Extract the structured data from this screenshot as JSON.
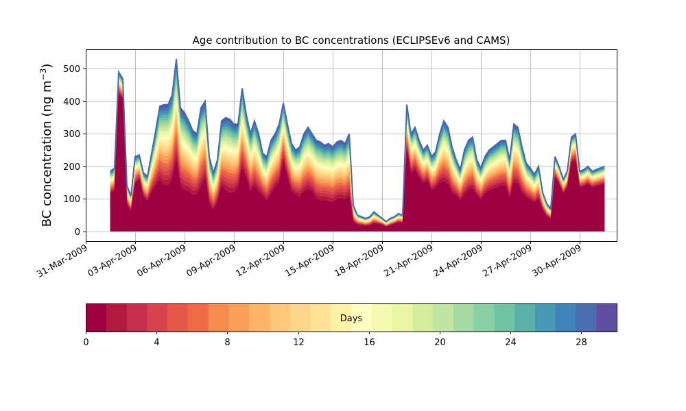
{
  "chart_data": {
    "type": "area",
    "title": "Age contribution to BC concentrations (ECLIPSEv6 and CAMS)",
    "ylabel": "BC concentration (ng m",
    "ylabel_superscript": "−3",
    "ylabel_suffix": ")",
    "xlabel": "",
    "grid": true,
    "ylim": [
      -30,
      560
    ],
    "yticks": [
      0,
      100,
      200,
      300,
      400,
      500
    ],
    "xlim": [
      "2009-03-31T00:00",
      "2009-05-02T06:00"
    ],
    "xtick_labels": [
      "31-Mar-2009",
      "03-Apr-2009",
      "06-Apr-2009",
      "09-Apr-2009",
      "12-Apr-2009",
      "15-Apr-2009",
      "18-Apr-2009",
      "21-Apr-2009",
      "24-Apr-2009",
      "27-Apr-2009",
      "30-Apr-2009"
    ],
    "stack_series_days": 30,
    "total_concentration": {
      "x": [
        "2009-04-01T12:00",
        "2009-04-01T18:00",
        "2009-04-02T00:00",
        "2009-04-02T06:00",
        "2009-04-02T12:00",
        "2009-04-02T18:00",
        "2009-04-03T00:00",
        "2009-04-03T06:00",
        "2009-04-03T12:00",
        "2009-04-03T18:00",
        "2009-04-04T00:00",
        "2009-04-04T06:00",
        "2009-04-04T12:00",
        "2009-04-04T18:00",
        "2009-04-05T00:00",
        "2009-04-05T06:00",
        "2009-04-05T12:00",
        "2009-04-05T18:00",
        "2009-04-06T00:00",
        "2009-04-06T06:00",
        "2009-04-06T12:00",
        "2009-04-06T18:00",
        "2009-04-07T00:00",
        "2009-04-07T06:00",
        "2009-04-07T12:00",
        "2009-04-07T18:00",
        "2009-04-08T00:00",
        "2009-04-08T06:00",
        "2009-04-08T12:00",
        "2009-04-08T18:00",
        "2009-04-09T00:00",
        "2009-04-09T06:00",
        "2009-04-09T12:00",
        "2009-04-09T18:00",
        "2009-04-10T00:00",
        "2009-04-10T06:00",
        "2009-04-10T12:00",
        "2009-04-10T18:00",
        "2009-04-11T00:00",
        "2009-04-11T06:00",
        "2009-04-11T12:00",
        "2009-04-11T18:00",
        "2009-04-12T00:00",
        "2009-04-12T06:00",
        "2009-04-12T12:00",
        "2009-04-12T18:00",
        "2009-04-13T00:00",
        "2009-04-13T06:00",
        "2009-04-13T12:00",
        "2009-04-13T18:00",
        "2009-04-14T00:00",
        "2009-04-14T06:00",
        "2009-04-14T12:00",
        "2009-04-14T18:00",
        "2009-04-15T00:00",
        "2009-04-15T06:00",
        "2009-04-15T12:00",
        "2009-04-15T18:00",
        "2009-04-16T00:00",
        "2009-04-16T06:00",
        "2009-04-16T12:00",
        "2009-04-16T18:00",
        "2009-04-17T00:00",
        "2009-04-17T06:00",
        "2009-04-17T12:00",
        "2009-04-17T18:00",
        "2009-04-18T00:00",
        "2009-04-18T06:00",
        "2009-04-18T12:00",
        "2009-04-18T18:00",
        "2009-04-19T00:00",
        "2009-04-19T06:00",
        "2009-04-19T12:00",
        "2009-04-19T18:00",
        "2009-04-20T00:00",
        "2009-04-20T06:00",
        "2009-04-20T12:00",
        "2009-04-20T18:00",
        "2009-04-21T00:00",
        "2009-04-21T06:00",
        "2009-04-21T12:00",
        "2009-04-21T18:00",
        "2009-04-22T00:00",
        "2009-04-22T06:00",
        "2009-04-22T12:00",
        "2009-04-22T18:00",
        "2009-04-23T00:00",
        "2009-04-23T06:00",
        "2009-04-23T12:00",
        "2009-04-23T18:00",
        "2009-04-24T00:00",
        "2009-04-24T06:00",
        "2009-04-24T12:00",
        "2009-04-24T18:00",
        "2009-04-25T00:00",
        "2009-04-25T06:00",
        "2009-04-25T12:00",
        "2009-04-25T18:00",
        "2009-04-26T00:00",
        "2009-04-26T06:00",
        "2009-04-26T12:00",
        "2009-04-26T18:00",
        "2009-04-27T00:00",
        "2009-04-27T06:00",
        "2009-04-27T12:00",
        "2009-04-27T18:00",
        "2009-04-28T00:00",
        "2009-04-28T06:00",
        "2009-04-28T12:00",
        "2009-04-28T18:00",
        "2009-04-29T00:00",
        "2009-04-29T06:00",
        "2009-04-29T12:00",
        "2009-04-29T18:00",
        "2009-04-30T00:00",
        "2009-04-30T06:00",
        "2009-04-30T12:00",
        "2009-04-30T18:00",
        "2009-05-01T00:00",
        "2009-05-01T06:00",
        "2009-05-01T12:00"
      ],
      "y": [
        185,
        195,
        490,
        470,
        140,
        110,
        230,
        235,
        180,
        170,
        240,
        310,
        385,
        390,
        390,
        420,
        530,
        380,
        365,
        340,
        310,
        300,
        380,
        400,
        230,
        180,
        220,
        340,
        350,
        345,
        330,
        330,
        440,
        360,
        300,
        340,
        300,
        240,
        230,
        280,
        300,
        330,
        395,
        330,
        270,
        250,
        260,
        300,
        320,
        300,
        280,
        275,
        265,
        270,
        260,
        275,
        280,
        270,
        300,
        80,
        50,
        45,
        40,
        45,
        60,
        50,
        40,
        30,
        40,
        45,
        55,
        50,
        390,
        300,
        320,
        280,
        250,
        265,
        230,
        245,
        300,
        340,
        320,
        260,
        220,
        190,
        250,
        280,
        290,
        220,
        195,
        230,
        250,
        260,
        270,
        280,
        280,
        220,
        330,
        320,
        260,
        210,
        195,
        175,
        200,
        120,
        85,
        70,
        230,
        200,
        160,
        185,
        290,
        300,
        185,
        190,
        200,
        185,
        190,
        195,
        200
      ],
      "fresh_fraction": [
        0.6,
        0.6,
        0.85,
        0.85,
        0.55,
        0.5,
        0.6,
        0.65,
        0.55,
        0.5,
        0.45,
        0.4,
        0.35,
        0.3,
        0.3,
        0.32,
        0.35,
        0.3,
        0.28,
        0.3,
        0.3,
        0.32,
        0.3,
        0.35,
        0.3,
        0.3,
        0.35,
        0.35,
        0.3,
        0.28,
        0.3,
        0.35,
        0.38,
        0.4,
        0.35,
        0.35,
        0.35,
        0.4,
        0.35,
        0.35,
        0.4,
        0.4,
        0.5,
        0.45,
        0.4,
        0.4,
        0.35,
        0.35,
        0.35,
        0.35,
        0.3,
        0.28,
        0.3,
        0.28,
        0.28,
        0.3,
        0.3,
        0.3,
        0.3,
        0.3,
        0.35,
        0.35,
        0.35,
        0.35,
        0.35,
        0.4,
        0.45,
        0.4,
        0.4,
        0.45,
        0.45,
        0.45,
        0.6,
        0.55,
        0.55,
        0.55,
        0.55,
        0.55,
        0.5,
        0.5,
        0.45,
        0.4,
        0.4,
        0.4,
        0.45,
        0.45,
        0.4,
        0.4,
        0.4,
        0.45,
        0.45,
        0.45,
        0.45,
        0.45,
        0.45,
        0.45,
        0.45,
        0.4,
        0.4,
        0.4,
        0.4,
        0.45,
        0.45,
        0.45,
        0.45,
        0.5,
        0.5,
        0.5,
        0.7,
        0.7,
        0.7,
        0.7,
        0.7,
        0.7,
        0.7,
        0.7,
        0.7,
        0.7,
        0.7,
        0.7,
        0.7
      ]
    },
    "colorbar": {
      "label": "Days",
      "ticks": [
        0,
        4,
        8,
        12,
        16,
        20,
        24,
        28
      ],
      "min": 0,
      "max": 30,
      "colormap": "Spectral",
      "colors": [
        "#9e0142",
        "#b2193f",
        "#c62f4c",
        "#d8434e",
        "#e55749",
        "#ef6a45",
        "#f58b4f",
        "#fa9f58",
        "#fdb467",
        "#fec77a",
        "#fed589",
        "#fee394",
        "#fff1a5",
        "#feffbe",
        "#f4fab0",
        "#e8f6a2",
        "#d4ed9c",
        "#bfe5a0",
        "#a4daa4",
        "#89d0a4",
        "#70c4a4",
        "#59b2aa",
        "#4599b5",
        "#3e83ba",
        "#4a6fb1",
        "#5e4fa2"
      ]
    }
  }
}
